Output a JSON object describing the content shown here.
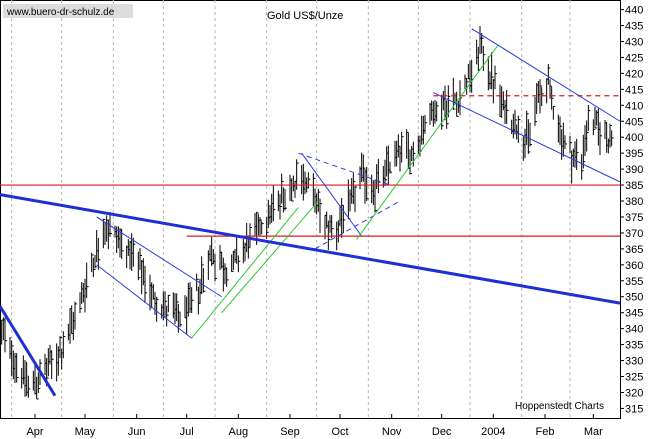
{
  "header": {
    "watermark": "www.buero-dr-schulz.de",
    "title": "Gold US$/Unze",
    "source": "Hoppenstedt Charts"
  },
  "colors": {
    "bars": "#000000",
    "trend_blue": "#1e2fd6",
    "channel_blue": "#2b3be0",
    "channel_green": "#2fc82f",
    "horizontal_red": "#e01818",
    "grid": "#b8b8b8"
  },
  "chart_data": {
    "type": "ohlc-bar",
    "title": "Gold US$/Unze",
    "xlabel": "",
    "ylabel": "",
    "ylim": [
      312,
      443
    ],
    "y_ticks": [
      315,
      320,
      325,
      330,
      335,
      340,
      345,
      350,
      355,
      360,
      365,
      370,
      375,
      380,
      385,
      390,
      395,
      400,
      405,
      410,
      415,
      420,
      425,
      430,
      435,
      440
    ],
    "x_range": [
      "2003-03-25",
      "2004-03-31"
    ],
    "x_ticks": [
      {
        "label": "Apr",
        "date": "2003-04-15"
      },
      {
        "label": "May",
        "date": "2003-05-15"
      },
      {
        "label": "Jun",
        "date": "2003-06-15"
      },
      {
        "label": "Jul",
        "date": "2003-07-15"
      },
      {
        "label": "Aug",
        "date": "2003-08-15"
      },
      {
        "label": "Sep",
        "date": "2003-09-15"
      },
      {
        "label": "Oct",
        "date": "2003-10-15"
      },
      {
        "label": "Nov",
        "date": "2003-11-15"
      },
      {
        "label": "Dec",
        "date": "2003-12-15"
      },
      {
        "label": "2004",
        "date": "2004-01-15"
      },
      {
        "label": "Feb",
        "date": "2004-02-15"
      },
      {
        "label": "Mar",
        "date": "2004-03-15"
      }
    ],
    "grid": "vertical dotted at month boundaries",
    "price_path": [
      [
        "2003-03-25",
        340
      ],
      [
        "2003-04-05",
        328
      ],
      [
        "2003-04-12",
        322
      ],
      [
        "2003-04-22",
        327
      ],
      [
        "2003-05-01",
        333
      ],
      [
        "2003-05-10",
        345
      ],
      [
        "2003-05-19",
        360
      ],
      [
        "2003-05-27",
        372
      ],
      [
        "2003-06-05",
        368
      ],
      [
        "2003-06-15",
        360
      ],
      [
        "2003-06-25",
        350
      ],
      [
        "2003-07-05",
        345
      ],
      [
        "2003-07-12",
        343
      ],
      [
        "2003-07-20",
        350
      ],
      [
        "2003-07-30",
        364
      ],
      [
        "2003-08-07",
        358
      ],
      [
        "2003-08-15",
        362
      ],
      [
        "2003-08-25",
        370
      ],
      [
        "2003-09-05",
        378
      ],
      [
        "2003-09-15",
        385
      ],
      [
        "2003-09-22",
        388
      ],
      [
        "2003-09-28",
        383
      ],
      [
        "2003-10-05",
        373
      ],
      [
        "2003-10-12",
        371
      ],
      [
        "2003-10-20",
        378
      ],
      [
        "2003-10-28",
        388
      ],
      [
        "2003-11-05",
        384
      ],
      [
        "2003-11-12",
        390
      ],
      [
        "2003-11-20",
        397
      ],
      [
        "2003-11-28",
        394
      ],
      [
        "2003-12-05",
        405
      ],
      [
        "2003-12-15",
        410
      ],
      [
        "2003-12-25",
        412
      ],
      [
        "2004-01-02",
        420
      ],
      [
        "2004-01-07",
        428
      ],
      [
        "2004-01-12",
        422
      ],
      [
        "2004-01-20",
        410
      ],
      [
        "2004-01-30",
        403
      ],
      [
        "2004-02-05",
        399
      ],
      [
        "2004-02-10",
        412
      ],
      [
        "2004-02-17",
        416
      ],
      [
        "2004-02-25",
        400
      ],
      [
        "2004-03-02",
        394
      ],
      [
        "2004-03-08",
        393
      ],
      [
        "2004-03-12",
        405
      ],
      [
        "2004-03-20",
        402
      ],
      [
        "2004-03-25",
        399
      ]
    ],
    "price_range_noted": {
      "low": 320,
      "high": 431
    },
    "trendlines": [
      {
        "name": "",
        "color": "trend_blue",
        "from": [
          "2003-03-25",
          382
        ],
        "to": [
          "2004-03-31",
          348
        ]
      },
      {
        "name": "",
        "color": "trend_blue",
        "from": [
          "2003-03-25",
          347
        ],
        "to": [
          "2003-04-27",
          319
        ]
      }
    ],
    "channels": [
      {
        "color": "channel_blue",
        "lines": [
          [
            [
              "2003-05-22",
              375
            ],
            [
              "2003-08-05",
              350
            ]
          ],
          [
            [
              "2003-05-22",
              360
            ],
            [
              "2003-07-18",
              337
            ]
          ]
        ]
      },
      {
        "color": "channel_green",
        "lines": [
          [
            [
              "2003-08-05",
              345
            ],
            [
              "2003-10-02",
              380
            ]
          ],
          [
            [
              "2003-07-18",
              337
            ],
            [
              "2003-09-20",
              378
            ]
          ]
        ]
      },
      {
        "color": "channel_blue",
        "lines": [
          [
            [
              "2003-09-22",
              395
            ],
            [
              "2003-10-28",
              369
            ]
          ]
        ]
      },
      {
        "color": "channel_blue",
        "dashed": true,
        "lines": [
          [
            [
              "2003-09-20",
              395
            ],
            [
              "2003-11-14",
              385
            ]
          ],
          [
            [
              "2003-09-30",
              365
            ],
            [
              "2003-11-20",
              380
            ]
          ]
        ]
      },
      {
        "color": "channel_green",
        "lines": [
          [
            [
              "2003-10-25",
              368
            ],
            [
              "2004-01-18",
              429
            ]
          ]
        ]
      },
      {
        "color": "channel_blue",
        "lines": [
          [
            [
              "2004-01-02",
              434
            ],
            [
              "2004-03-31",
              405
            ]
          ],
          [
            [
              "2003-12-10",
              414
            ],
            [
              "2004-03-31",
              386
            ]
          ]
        ]
      }
    ],
    "horizontal_lines": [
      {
        "y": 385,
        "style": "solid",
        "color": "horizontal_red",
        "from": "2003-03-25"
      },
      {
        "y": 369,
        "style": "solid",
        "color": "horizontal_red",
        "from": "2003-07-15"
      },
      {
        "y": 413,
        "style": "dashed",
        "color": "horizontal_red",
        "from": "2003-12-10"
      }
    ]
  }
}
